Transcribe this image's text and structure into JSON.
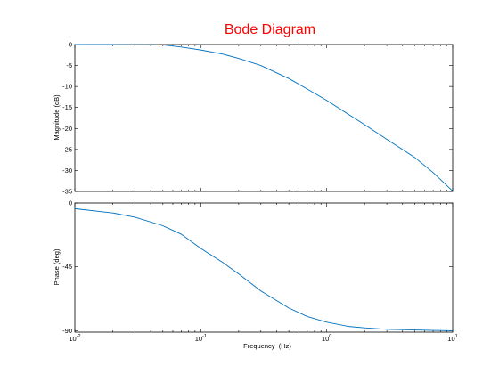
{
  "chart_data": [
    {
      "type": "line",
      "title": "Bode Diagram",
      "title_color": "#ff0000",
      "xscale": "log",
      "xlim": [
        0.01,
        10
      ],
      "ylim": [
        -35,
        0
      ],
      "ylabel": "Magnitude (dB)",
      "xlabel": "",
      "yticks": [
        0,
        -5,
        -10,
        -15,
        -20,
        -25,
        -30,
        -35
      ],
      "ytick_labels": [
        "0",
        "-5",
        "-10",
        "-15",
        "-20",
        "-25",
        "-30",
        "-35"
      ],
      "grid": false,
      "series": [
        {
          "color": "#0072bd",
          "x": [
            0.01,
            0.02,
            0.03,
            0.05,
            0.07,
            0.1,
            0.15,
            0.2,
            0.3,
            0.5,
            0.7,
            1,
            1.5,
            2,
            3,
            5,
            7,
            10
          ],
          "y": [
            0,
            -0.02,
            -0.04,
            -0.1,
            -0.6,
            -1.3,
            -2.3,
            -3.3,
            -5.0,
            -8.1,
            -10.6,
            -13.3,
            -16.7,
            -19.1,
            -22.6,
            -26.9,
            -30.5,
            -34.9
          ]
        }
      ]
    },
    {
      "type": "line",
      "xscale": "log",
      "xlim": [
        0.01,
        10
      ],
      "ylim": [
        -91,
        0
      ],
      "ylabel": "Phase (deg)",
      "xlabel": "Frequency  (Hz)",
      "yticks": [
        0,
        -45,
        -90
      ],
      "ytick_labels": [
        "0",
        "-45",
        "-90"
      ],
      "xticks": [
        0.01,
        0.1,
        1,
        10
      ],
      "xtick_labels": [
        {
          "base": "10",
          "exp": "-2"
        },
        {
          "base": "10",
          "exp": "-1"
        },
        {
          "base": "10",
          "exp": "0"
        },
        {
          "base": "10",
          "exp": "1"
        }
      ],
      "grid": false,
      "series": [
        {
          "color": "#0072bd",
          "x": [
            0.01,
            0.02,
            0.03,
            0.05,
            0.07,
            0.1,
            0.15,
            0.2,
            0.3,
            0.5,
            0.7,
            1,
            1.5,
            2,
            3,
            5,
            7,
            10
          ],
          "y": [
            -4,
            -7,
            -10,
            -16,
            -22,
            -32,
            -42,
            -50,
            -62,
            -74,
            -80,
            -84,
            -87,
            -88,
            -89,
            -89.5,
            -89.8,
            -90
          ]
        }
      ]
    }
  ]
}
